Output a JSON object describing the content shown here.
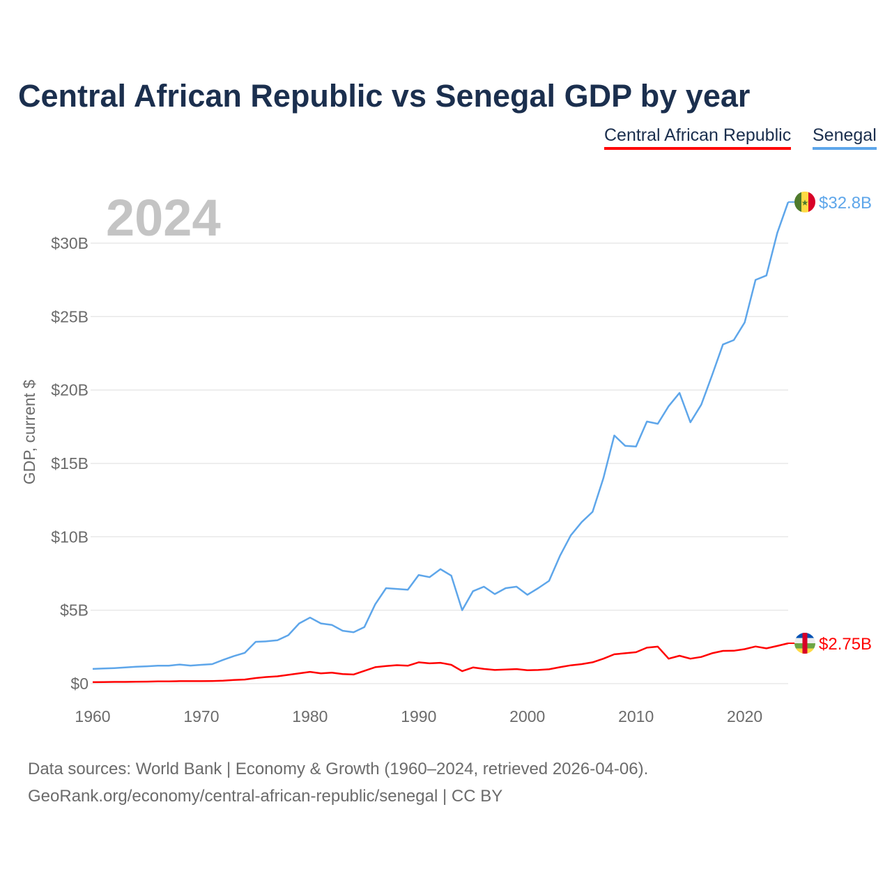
{
  "chart_data": {
    "type": "line",
    "title": "Central African Republic vs Senegal GDP by year",
    "ylabel": "GDP, current $",
    "xlabel": "",
    "year_watermark": "2024",
    "ylim": [
      0,
      33
    ],
    "xlim": [
      1960,
      2024
    ],
    "grid": true,
    "legend_position": "top-right",
    "x_ticks": [
      1960,
      1970,
      1980,
      1990,
      2000,
      2010,
      2020
    ],
    "y_ticks": [
      0,
      5,
      10,
      15,
      20,
      25,
      30
    ],
    "y_tick_labels": [
      "$0",
      "$5B",
      "$10B",
      "$15B",
      "$20B",
      "$25B",
      "$30B"
    ],
    "x_start": 1960,
    "series": [
      {
        "name": "Central African Republic",
        "color": "#ff0000",
        "end_label": "$2.75B",
        "flag": "central-african-republic-flag",
        "values": [
          0.1,
          0.11,
          0.12,
          0.12,
          0.13,
          0.14,
          0.15,
          0.15,
          0.17,
          0.17,
          0.17,
          0.18,
          0.2,
          0.25,
          0.28,
          0.38,
          0.45,
          0.5,
          0.6,
          0.7,
          0.8,
          0.7,
          0.75,
          0.65,
          0.62,
          0.87,
          1.12,
          1.2,
          1.26,
          1.22,
          1.45,
          1.38,
          1.42,
          1.28,
          0.85,
          1.1,
          1.0,
          0.93,
          0.96,
          0.99,
          0.91,
          0.93,
          0.98,
          1.12,
          1.25,
          1.33,
          1.45,
          1.7,
          2.0,
          2.07,
          2.14,
          2.45,
          2.52,
          1.7,
          1.9,
          1.7,
          1.82,
          2.07,
          2.23,
          2.24,
          2.35,
          2.53,
          2.4,
          2.57,
          2.75
        ]
      },
      {
        "name": "Senegal",
        "color": "#5ea6ea",
        "end_label": "$32.8B",
        "flag": "senegal-flag",
        "values": [
          1.0,
          1.03,
          1.06,
          1.1,
          1.15,
          1.18,
          1.22,
          1.22,
          1.3,
          1.23,
          1.28,
          1.33,
          1.62,
          1.88,
          2.1,
          2.85,
          2.88,
          2.95,
          3.3,
          4.1,
          4.5,
          4.1,
          4.0,
          3.6,
          3.5,
          3.85,
          5.4,
          6.5,
          6.45,
          6.4,
          7.4,
          7.25,
          7.8,
          7.35,
          5.0,
          6.3,
          6.6,
          6.1,
          6.5,
          6.6,
          6.05,
          6.5,
          7.0,
          8.7,
          10.1,
          11.0,
          11.7,
          14.0,
          16.9,
          16.2,
          16.15,
          17.85,
          17.7,
          18.9,
          19.8,
          17.8,
          19.0,
          21.0,
          23.1,
          23.4,
          24.6,
          27.5,
          27.8,
          30.7,
          32.8
        ]
      }
    ]
  },
  "source": {
    "line1": "Data sources: World Bank | Economy & Growth (1960–2024, retrieved 2026-04-06).",
    "line2": "GeoRank.org/economy/central-african-republic/senegal | CC BY"
  }
}
